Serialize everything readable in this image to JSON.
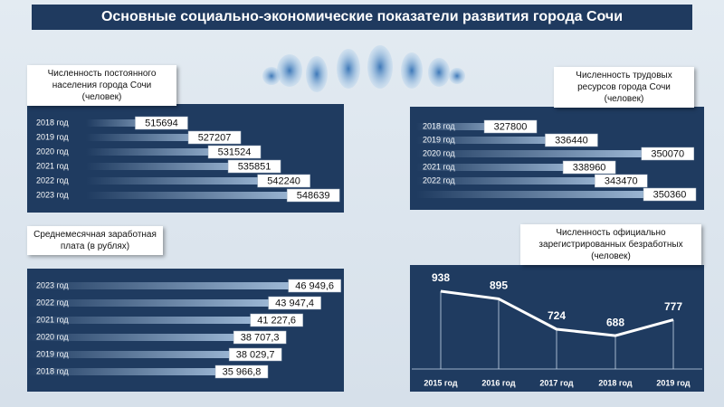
{
  "title": "Основные социально-экономические показатели развития города Сочи",
  "chart_data": [
    {
      "type": "bar",
      "orientation": "horizontal",
      "title": "Численность постоянного населения города Сочи (человек)",
      "categories": [
        "2018 год",
        "2019 год",
        "2020 год",
        "2021 год",
        "2022 год",
        "2023 год"
      ],
      "values": [
        515694,
        527207,
        531524,
        535851,
        542240,
        548639
      ],
      "xlim": [
        494000,
        549000
      ],
      "color": "#b5d0ec"
    },
    {
      "type": "bar",
      "orientation": "horizontal",
      "title": "Численность трудовых ресурсов города Сочи (человек)",
      "categories": [
        "2018 год",
        "2019 год",
        "2020 год",
        "2021 год",
        "2022 год",
        null
      ],
      "values": [
        327800,
        336440,
        350070,
        338960,
        343470,
        350360
      ],
      "xlim": [
        311000,
        351000
      ],
      "color": "#b5d0ec"
    },
    {
      "type": "bar",
      "orientation": "horizontal",
      "title": "Среднемесячная заработная плата (в рублях)",
      "categories": [
        "2023 год",
        "2022 год",
        "2021 год",
        "2020 год",
        "2019 год",
        "2018 год"
      ],
      "values": [
        46949.6,
        43947.4,
        41227.6,
        38707.3,
        38029.7,
        35966.8
      ],
      "value_labels": [
        "46 949,6",
        "43 947,4",
        "41 227,6",
        "38 707,3",
        "38 029,7",
        "35 966,8"
      ],
      "xlim": [
        0,
        47000
      ],
      "color": "#b5d0ec"
    },
    {
      "type": "line",
      "title": "Численность официально зарегистрированных безработных (человек)",
      "categories": [
        "2015 год",
        "2016 год",
        "2017 год",
        "2018 год",
        "2019 год"
      ],
      "values": [
        938,
        895,
        724,
        688,
        777
      ],
      "ylim": [
        500,
        1050
      ],
      "color": "#ffffff"
    }
  ]
}
